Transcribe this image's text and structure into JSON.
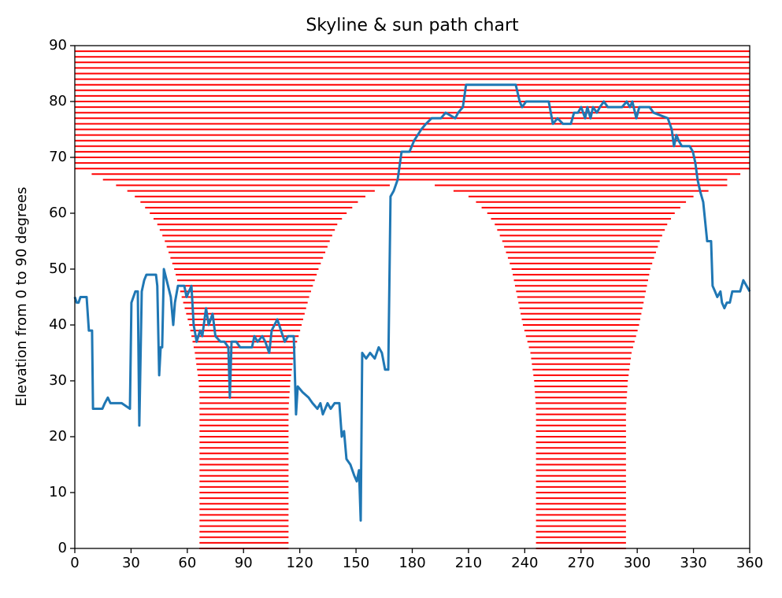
{
  "chart_data": {
    "type": "line",
    "title": "Skyline & sun path chart",
    "ylabel": "Elevation from 0 to 90 degrees",
    "xlim": [
      0,
      360
    ],
    "ylim": [
      0,
      90
    ],
    "xticks": [
      0,
      30,
      60,
      90,
      120,
      150,
      180,
      210,
      240,
      270,
      300,
      330,
      360
    ],
    "yticks": [
      0,
      10,
      20,
      30,
      40,
      50,
      60,
      70,
      80,
      90
    ],
    "series": [
      {
        "color": "#1f77b4",
        "x": [
          0,
          1,
          2,
          3,
          6.3,
          7.5,
          9.2,
          9.7,
          14.7,
          16,
          17.6,
          19,
          25,
          29.4,
          30.2,
          32.3,
          33.6,
          34.4,
          35.7,
          37,
          38.2,
          43.3,
          44,
          45,
          45.8,
          46.6,
          47.5,
          49,
          51.2,
          52.5,
          53.4,
          55,
          58.4,
          59.6,
          62.2,
          63.4,
          65,
          66.8,
          68,
          70,
          71.4,
          73.5,
          75,
          77.7,
          79.8,
          81.9,
          82.7,
          83.6,
          86.1,
          88.2,
          94.5,
          95.8,
          97.5,
          100,
          101.6,
          103.7,
          105,
          108,
          110,
          112,
          113.8,
          116.8,
          118,
          118.9,
          121.4,
          124.7,
          126.8,
          129.4,
          131,
          132.3,
          134.8,
          136.5,
          138.6,
          141.1,
          142.4,
          143.6,
          144.9,
          147,
          149.1,
          150.4,
          151.6,
          152.5,
          153.3,
          155.4,
          157.5,
          160,
          162.1,
          163.8,
          165.5,
          167.2,
          168.4,
          170.1,
          172.2,
          174.3,
          178.5,
          181,
          184.8,
          187.3,
          190.3,
          195.3,
          197.8,
          202.9,
          204.5,
          207,
          208.7,
          212.1,
          235.2,
          237.3,
          238.6,
          240.7,
          252.8,
          255,
          257.5,
          260.4,
          264.6,
          266.3,
          268.4,
          270.1,
          272.2,
          273.4,
          275.1,
          276.4,
          278.5,
          280.1,
          282.2,
          284.3,
          291.9,
          294.4,
          296.1,
          297.4,
          299.5,
          301.1,
          306.6,
          308.7,
          316.3,
          318.4,
          319.6,
          320.9,
          322.1,
          323.8,
          328,
          329.7,
          331,
          332.2,
          333.5,
          335.2,
          337.3,
          339.4,
          340.2,
          341.5,
          342.7,
          344.4,
          345.2,
          346.5,
          347.8,
          349.4,
          350.7,
          354.9,
          356.6,
          358.3,
          360
        ],
        "values": [
          45,
          44,
          44,
          45,
          45,
          39,
          39,
          25,
          25,
          26,
          27,
          26,
          26,
          25,
          44,
          46,
          46,
          22,
          46,
          48,
          49,
          49,
          47,
          31,
          36,
          36,
          50,
          48,
          45,
          40,
          44,
          47,
          47,
          45,
          47,
          40,
          37,
          39,
          38,
          43,
          40,
          42,
          38,
          37,
          37,
          36,
          27,
          37,
          37,
          36,
          36,
          38,
          37,
          38,
          37,
          35,
          39,
          41,
          39,
          37,
          38,
          38,
          24,
          29,
          28,
          27,
          26,
          25,
          26,
          24,
          26,
          25,
          26,
          26,
          20,
          21,
          16,
          15,
          13,
          12,
          14,
          5,
          35,
          34,
          35,
          34,
          36,
          35,
          32,
          32,
          63,
          64,
          66,
          71,
          71,
          73,
          75,
          76,
          77,
          77,
          78,
          77,
          78,
          79,
          83,
          83,
          83,
          80,
          79,
          80,
          80,
          76,
          77,
          76,
          76,
          78,
          78,
          79,
          77,
          79,
          77,
          79,
          78,
          79,
          80,
          79,
          79,
          80,
          79,
          80,
          77,
          79,
          79,
          78,
          77,
          75,
          72,
          74,
          73,
          72,
          72,
          71,
          69,
          66,
          64,
          62,
          55,
          55,
          47,
          46,
          45,
          46,
          44,
          43,
          44,
          44,
          46,
          46,
          48,
          47,
          46
        ]
      }
    ],
    "sun_path": {
      "color": "#ff0000",
      "elevation": [
        0,
        1,
        2,
        3,
        4,
        5,
        6,
        7,
        8,
        9,
        10,
        11,
        12,
        13,
        14,
        15,
        16,
        17,
        18,
        19,
        20,
        21,
        22,
        23,
        24,
        25,
        26,
        27,
        28,
        29,
        30,
        31,
        32,
        33,
        34,
        35,
        36,
        37,
        38,
        39,
        40,
        41,
        42,
        43,
        44,
        45,
        46,
        47,
        48,
        49,
        50,
        51,
        52,
        53,
        54,
        55,
        56,
        57,
        58,
        59,
        60,
        61,
        62,
        63,
        64,
        65,
        0,
        1,
        2,
        3,
        4,
        5,
        6,
        7,
        8,
        9,
        10,
        11,
        12,
        13,
        14,
        15,
        16,
        17,
        18,
        19,
        20,
        21,
        22,
        23,
        24,
        25,
        26,
        27,
        28,
        29,
        30,
        31,
        32,
        33,
        34,
        35,
        36,
        37,
        38,
        39,
        40,
        41,
        42,
        43,
        44,
        45,
        46,
        47,
        48,
        49,
        50,
        51,
        52,
        53,
        54,
        55,
        56,
        57,
        58,
        59,
        60,
        61,
        62,
        63,
        64,
        65,
        66,
        67,
        68,
        69,
        70,
        71,
        72,
        73,
        74,
        75,
        76,
        77,
        78,
        79,
        80,
        81,
        82,
        83,
        84,
        85,
        86,
        87,
        88,
        89
      ],
      "start": [
        66.5,
        66.5,
        66.5,
        66.5,
        66.5,
        66.5,
        66.5,
        66.5,
        66.5,
        66.5,
        66.5,
        66.5,
        66.5,
        66.5,
        66.5,
        66.5,
        66.5,
        66.5,
        66.5,
        66.5,
        66.5,
        66.5,
        66.5,
        66.5,
        66.5,
        66.5,
        66.5,
        66.5,
        66.3,
        66.2,
        66,
        65.6,
        65.2,
        64.8,
        64.4,
        64,
        63.4,
        62.8,
        62.2,
        61.6,
        61,
        60.2,
        59.4,
        58.6,
        57.8,
        57,
        56.2,
        55.4,
        54.6,
        53.8,
        53,
        52,
        51,
        50,
        49,
        48,
        46.7,
        45.3,
        44,
        42,
        40,
        37.5,
        35,
        32,
        28,
        22,
        246,
        246,
        246,
        246,
        246,
        246,
        246,
        246,
        246,
        246,
        246,
        246,
        246,
        246,
        246,
        246,
        246,
        246,
        246,
        246,
        246,
        246,
        246,
        246,
        246,
        246,
        245.8,
        245.6,
        245.4,
        245.2,
        245,
        244.6,
        244.2,
        243.8,
        243.4,
        243,
        242.2,
        241.4,
        240.6,
        239.8,
        239,
        238.4,
        237.8,
        237.2,
        236.6,
        236,
        235.4,
        234.8,
        234.2,
        233.6,
        233,
        232,
        231,
        230,
        229,
        228,
        226.7,
        225.3,
        224,
        222,
        220,
        217,
        214,
        210,
        202,
        192,
        15,
        9,
        0,
        0,
        0,
        0,
        0,
        0,
        0,
        0,
        0,
        0,
        0,
        0,
        0,
        0,
        0,
        0,
        0,
        0,
        0,
        0,
        0,
        0
      ],
      "end": [
        114,
        114,
        114,
        114,
        114,
        114,
        114,
        114,
        114,
        114,
        114,
        114,
        114,
        114,
        114,
        114,
        114,
        114,
        114,
        114,
        114,
        114,
        114,
        114,
        114,
        114,
        114.2,
        114.4,
        114.6,
        114.8,
        115,
        115.4,
        115.8,
        116.2,
        116.6,
        117,
        117.8,
        118.6,
        119.4,
        120.2,
        121,
        121.8,
        122.6,
        123.4,
        124.2,
        125,
        126,
        127,
        128,
        129,
        130,
        131.2,
        132.4,
        133.6,
        134.8,
        136,
        137.3,
        138.7,
        140,
        142.5,
        145,
        148,
        151,
        155,
        160,
        168,
        294,
        294,
        294,
        294,
        294,
        294,
        294,
        294,
        294,
        294,
        294,
        294,
        294,
        294,
        294,
        294,
        294,
        294,
        294,
        294,
        294,
        294,
        294,
        294,
        294,
        294,
        294.2,
        294.4,
        294.6,
        294.8,
        295,
        295.4,
        295.8,
        296.2,
        296.6,
        297,
        297.8,
        298.6,
        299.4,
        300.2,
        301,
        301.6,
        302.2,
        302.8,
        303.4,
        304,
        304.6,
        305.2,
        305.8,
        306.4,
        307,
        308,
        309,
        310,
        311,
        312,
        313.3,
        314.7,
        316,
        318,
        320,
        323,
        326,
        330,
        338,
        348,
        348,
        355,
        360,
        360,
        360,
        360,
        360,
        360,
        360,
        360,
        360,
        360,
        360,
        360,
        360,
        360,
        360,
        360,
        360,
        360,
        360,
        360,
        360,
        360
      ]
    }
  }
}
